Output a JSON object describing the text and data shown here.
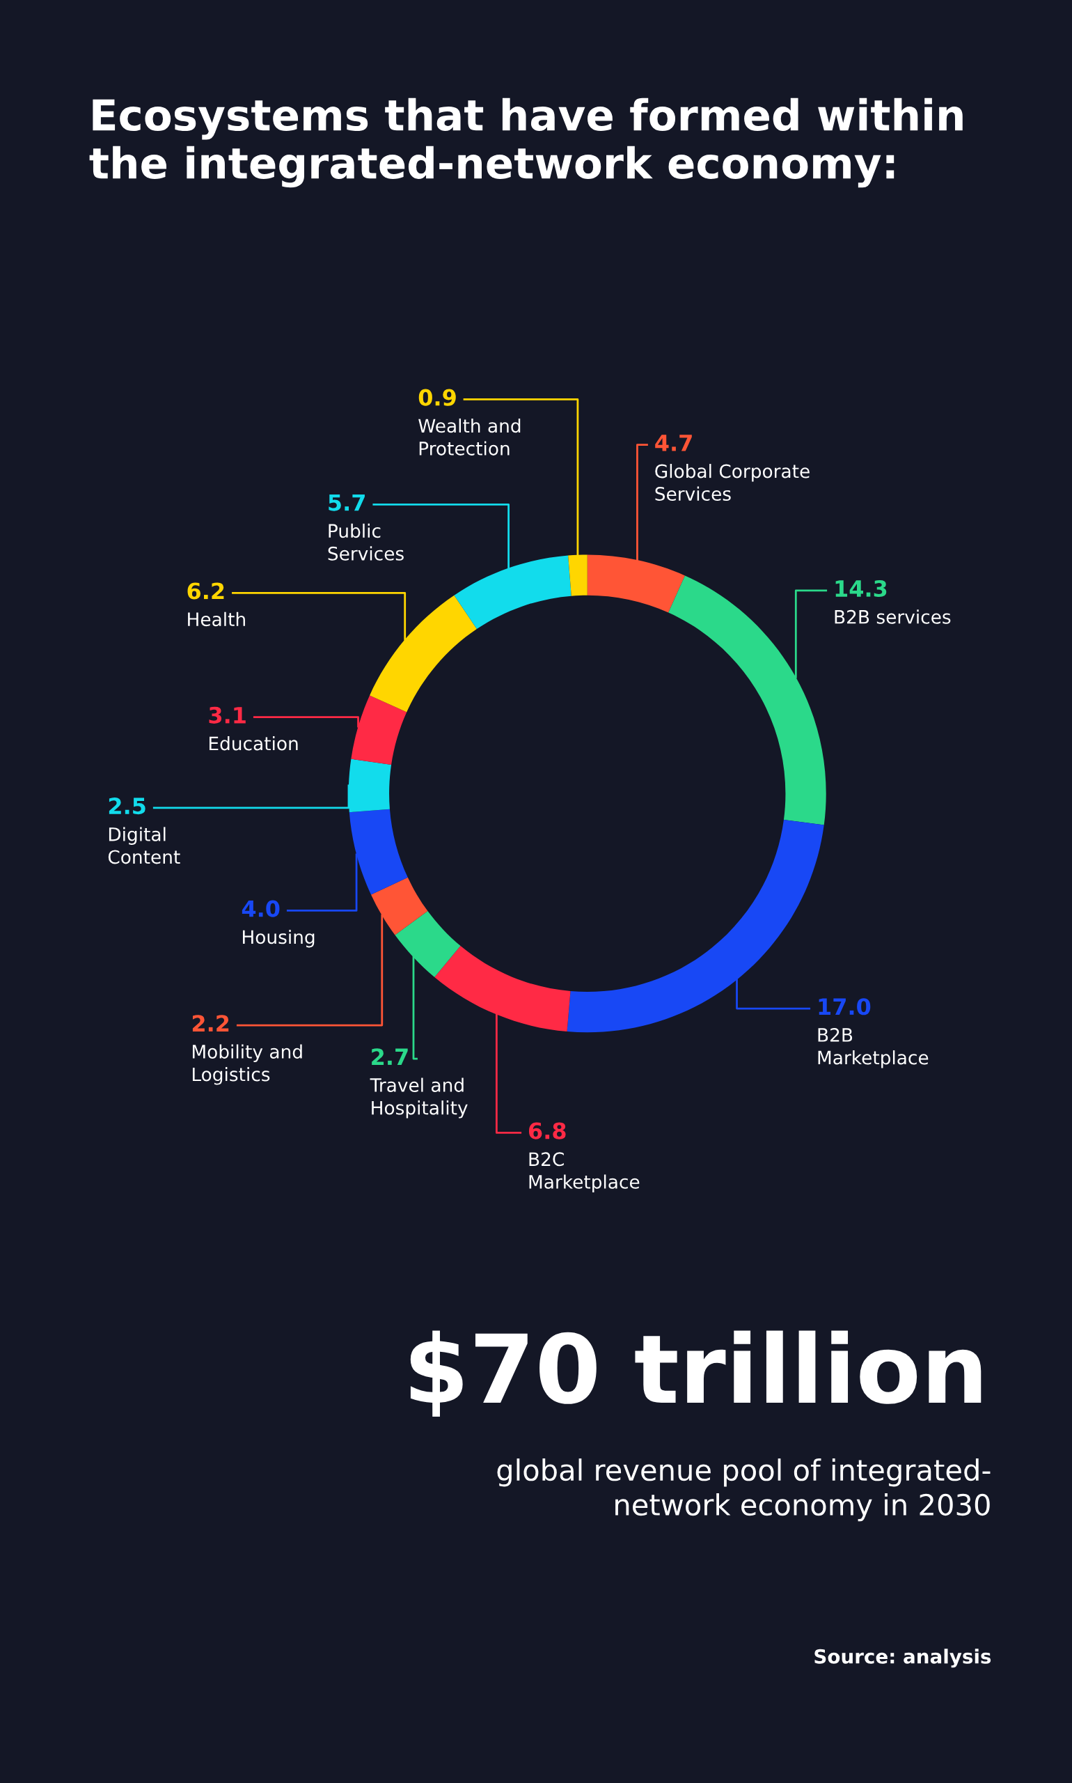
{
  "chart_data": {
    "type": "donut",
    "title": "Ecosystems that have formed within\nthe integrated-network economy:",
    "categories": [
      "Global Corporate\nServices",
      "B2B services",
      "B2B\nMarketplace",
      "B2C\nMarketplace",
      "Travel and\nHospitality",
      "Mobility and\nLogistics",
      "Housing",
      "Digital\nContent",
      "Education",
      "Health",
      "Public\nServices",
      "Wealth and\nProtection"
    ],
    "values": [
      4.7,
      14.3,
      17.0,
      6.8,
      2.7,
      2.2,
      4.0,
      2.5,
      3.1,
      6.2,
      5.7,
      0.9
    ],
    "colors": [
      "#ff5536",
      "#2bd98a",
      "#1848f5",
      "#ff2a45",
      "#2bd98a",
      "#ff5536",
      "#1848f5",
      "#12dcec",
      "#ff2a45",
      "#ffd600",
      "#12dcec",
      "#ffd600"
    ],
    "value_labels": [
      "4.7",
      "14.3",
      "17.0",
      "6.8",
      "2.7",
      "2.2",
      "4.0",
      "2.5",
      "3.1",
      "6.2",
      "5.7",
      "0.9"
    ],
    "annotations": [
      "$70 trillion",
      "global revenue pool of integrated-\nnetwork economy in 2030",
      "Source: analysis"
    ]
  }
}
